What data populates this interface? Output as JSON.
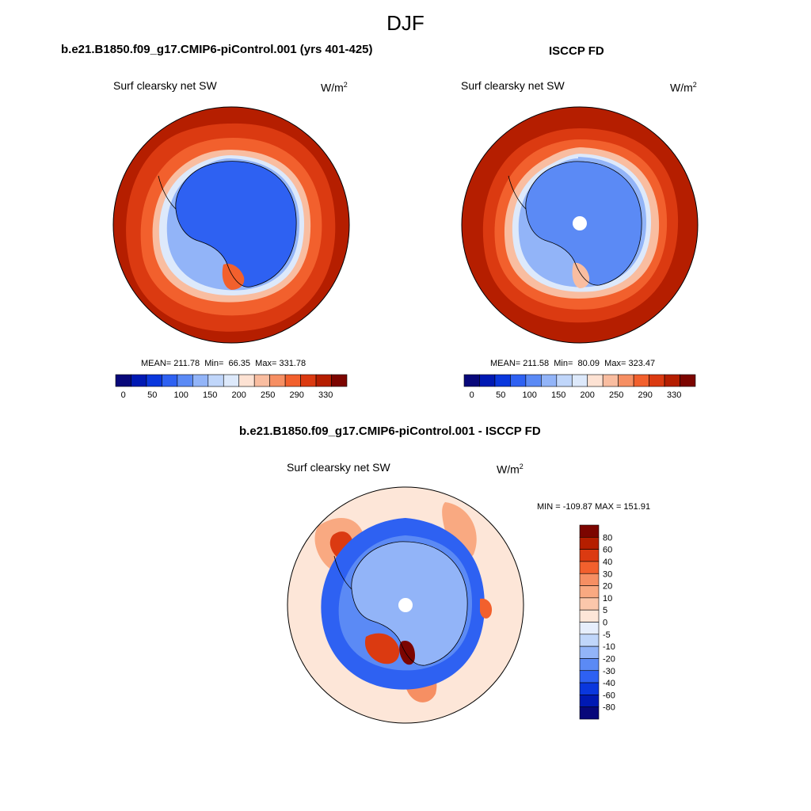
{
  "page_title": "DJF",
  "panels": [
    {
      "title": "b.e21.B1850.f09_g17.CMIP6-piControl.001 (yrs 401-425)",
      "field": "Surf clearsky net SW",
      "units": "W/m",
      "units_sup": "2",
      "stats": {
        "mean_label": "MEAN=",
        "mean": "211.78",
        "min_label": "Min=",
        "min": "66.35",
        "max_label": "Max=",
        "max": "331.78"
      }
    },
    {
      "title": "ISCCP FD",
      "field": "Surf clearsky net SW",
      "units": "W/m",
      "units_sup": "2",
      "stats": {
        "mean_label": "MEAN=",
        "mean": "211.58",
        "min_label": "Min=",
        "min": "80.09",
        "max_label": "Max=",
        "max": "323.47"
      }
    },
    {
      "title": "b.e21.B1850.f09_g17.CMIP6-piControl.001 - ISCCP FD",
      "field": "Surf clearsky net SW",
      "units": "W/m",
      "units_sup": "2",
      "stats_text": "MIN = -109.87 MAX = 151.91"
    }
  ],
  "chart_data": [
    {
      "type": "heatmap",
      "projection": "south-polar-stereographic",
      "title": "b.e21.B1850.f09_g17.CMIP6-piControl.001 (yrs 401-425)",
      "field": "Surf clearsky net SW",
      "units": "W/m2",
      "mean": 211.78,
      "min": 66.35,
      "max": 331.78,
      "colorbar": {
        "orientation": "horizontal",
        "tick_labels": [
          "0",
          "50",
          "100",
          "150",
          "200",
          "250",
          "290",
          "330"
        ],
        "colors": [
          "#08087a",
          "#0019b3",
          "#0a37dd",
          "#2e61f2",
          "#5b8af5",
          "#92b4f8",
          "#c0d6fa",
          "#dde9fb",
          "#fde2d3",
          "#f9bda0",
          "#f68f63",
          "#f2602d",
          "#db3a11",
          "#b51e00",
          "#7c0500"
        ]
      },
      "region_values": {
        "antarctic_interior": 80,
        "coastal_ice": 130,
        "sea_ice_zone": 190,
        "outer_ocean": 320
      }
    },
    {
      "type": "heatmap",
      "projection": "south-polar-stereographic",
      "title": "ISCCP FD",
      "field": "Surf clearsky net SW",
      "units": "W/m2",
      "mean": 211.58,
      "min": 80.09,
      "max": 323.47,
      "colorbar": {
        "orientation": "horizontal",
        "tick_labels": [
          "0",
          "50",
          "100",
          "150",
          "200",
          "250",
          "290",
          "330"
        ],
        "colors": [
          "#08087a",
          "#0019b3",
          "#0a37dd",
          "#2e61f2",
          "#5b8af5",
          "#92b4f8",
          "#c0d6fa",
          "#dde9fb",
          "#fde2d3",
          "#f9bda0",
          "#f68f63",
          "#f2602d",
          "#db3a11",
          "#b51e00",
          "#7c0500"
        ]
      },
      "region_values": {
        "antarctic_interior": 110,
        "coastal_ice": 140,
        "sea_ice_zone": 190,
        "outer_ocean": 320
      }
    },
    {
      "type": "heatmap",
      "projection": "south-polar-stereographic",
      "title": "b.e21.B1850.f09_g17.CMIP6-piControl.001 - ISCCP FD",
      "field": "Surf clearsky net SW",
      "units": "W/m2",
      "min": -109.87,
      "max": 151.91,
      "colorbar": {
        "orientation": "vertical",
        "tick_labels": [
          "80",
          "60",
          "40",
          "30",
          "20",
          "10",
          "5",
          "0",
          "-5",
          "-10",
          "-20",
          "-30",
          "-40",
          "-60",
          "-80"
        ],
        "colors": [
          "#7c0500",
          "#b51e00",
          "#db3a11",
          "#f2602d",
          "#f68f63",
          "#f9a981",
          "#fbc7ab",
          "#fde6d8",
          "#e6eefc",
          "#c0d6fa",
          "#92b4f8",
          "#5b8af5",
          "#2e61f2",
          "#0a37dd",
          "#0019b3",
          "#08087a"
        ]
      },
      "region_values": {
        "outer_ocean": 2,
        "antarctic_interior": -25,
        "sea_ice_ring": -50,
        "ross_sea_sector": 40
      }
    }
  ]
}
